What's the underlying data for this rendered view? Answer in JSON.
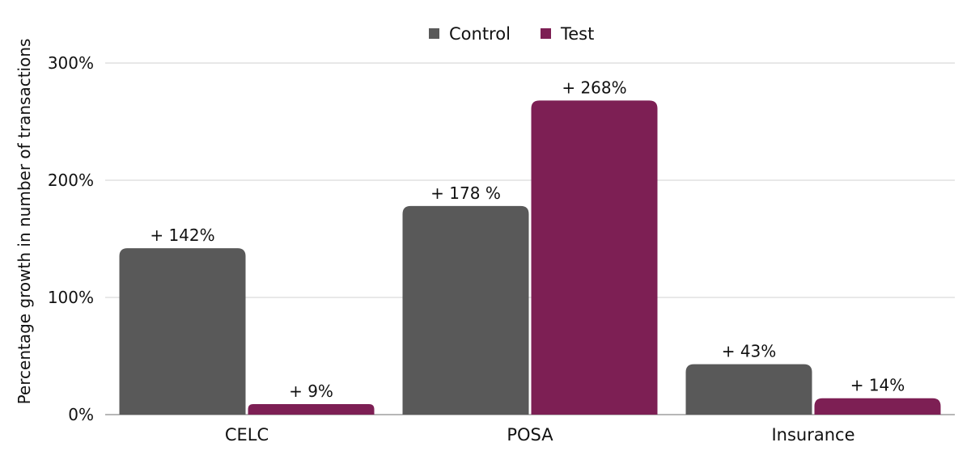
{
  "chart_data": {
    "type": "bar",
    "categories": [
      "CELC",
      "POSA",
      "Insurance"
    ],
    "series": [
      {
        "name": "Control",
        "color": "#595959",
        "values": [
          142,
          178,
          43
        ],
        "labels": [
          "+ 142%",
          "+ 178 %",
          "+ 43%"
        ]
      },
      {
        "name": "Test",
        "color": "#7d1f54",
        "values": [
          9,
          268,
          14
        ],
        "labels": [
          "+ 9%",
          "+ 268%",
          "+ 14%"
        ]
      }
    ],
    "ylabel": "Percentage growth in number of transactions",
    "xlabel": "",
    "ylim": [
      0,
      300
    ],
    "yticks": [
      0,
      100,
      200,
      300
    ],
    "ytick_labels": [
      "0%",
      "100%",
      "200%",
      "300%"
    ],
    "grid": true,
    "legend_position": "top-center"
  }
}
